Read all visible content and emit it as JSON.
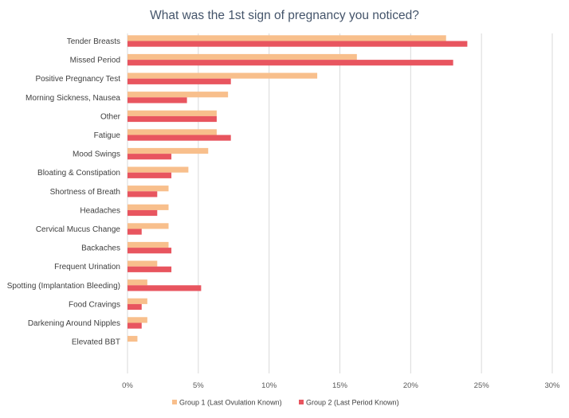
{
  "chart_data": {
    "type": "bar",
    "orientation": "horizontal",
    "title": "What was the 1st sign of pregnancy you noticed?",
    "xlabel": "",
    "ylabel": "",
    "xlim": [
      0,
      30
    ],
    "ticks": [
      "0%",
      "5%",
      "10%",
      "15%",
      "20%",
      "25%",
      "30%"
    ],
    "categories": [
      "Tender Breasts",
      "Missed Period",
      "Positive Pregnancy Test",
      "Morning Sickness, Nausea",
      "Other",
      "Fatigue",
      "Mood Swings",
      "Bloating & Constipation",
      "Shortness of Breath",
      "Headaches",
      "Cervical Mucus Change",
      "Backaches",
      "Frequent Urination",
      "Spotting (Implantation Bleeding)",
      "Food Cravings",
      "Darkening Around Nipples",
      "Elevated BBT"
    ],
    "series": [
      {
        "name": "Group 1 (Last Ovulation Known)",
        "color": "#f8bf8c",
        "values": [
          22.5,
          16.2,
          13.4,
          7.1,
          6.3,
          6.3,
          5.7,
          4.3,
          2.9,
          2.9,
          2.9,
          2.9,
          2.1,
          1.4,
          1.4,
          1.4,
          0.7
        ]
      },
      {
        "name": "Group 2 (Last Period Known)",
        "color": "#e8555f",
        "values": [
          24.0,
          23.0,
          7.3,
          4.2,
          6.3,
          7.3,
          3.1,
          3.1,
          2.1,
          2.1,
          1.0,
          3.1,
          3.1,
          5.2,
          1.0,
          1.0,
          0
        ]
      }
    ],
    "grid": true,
    "legend_position": "bottom"
  }
}
